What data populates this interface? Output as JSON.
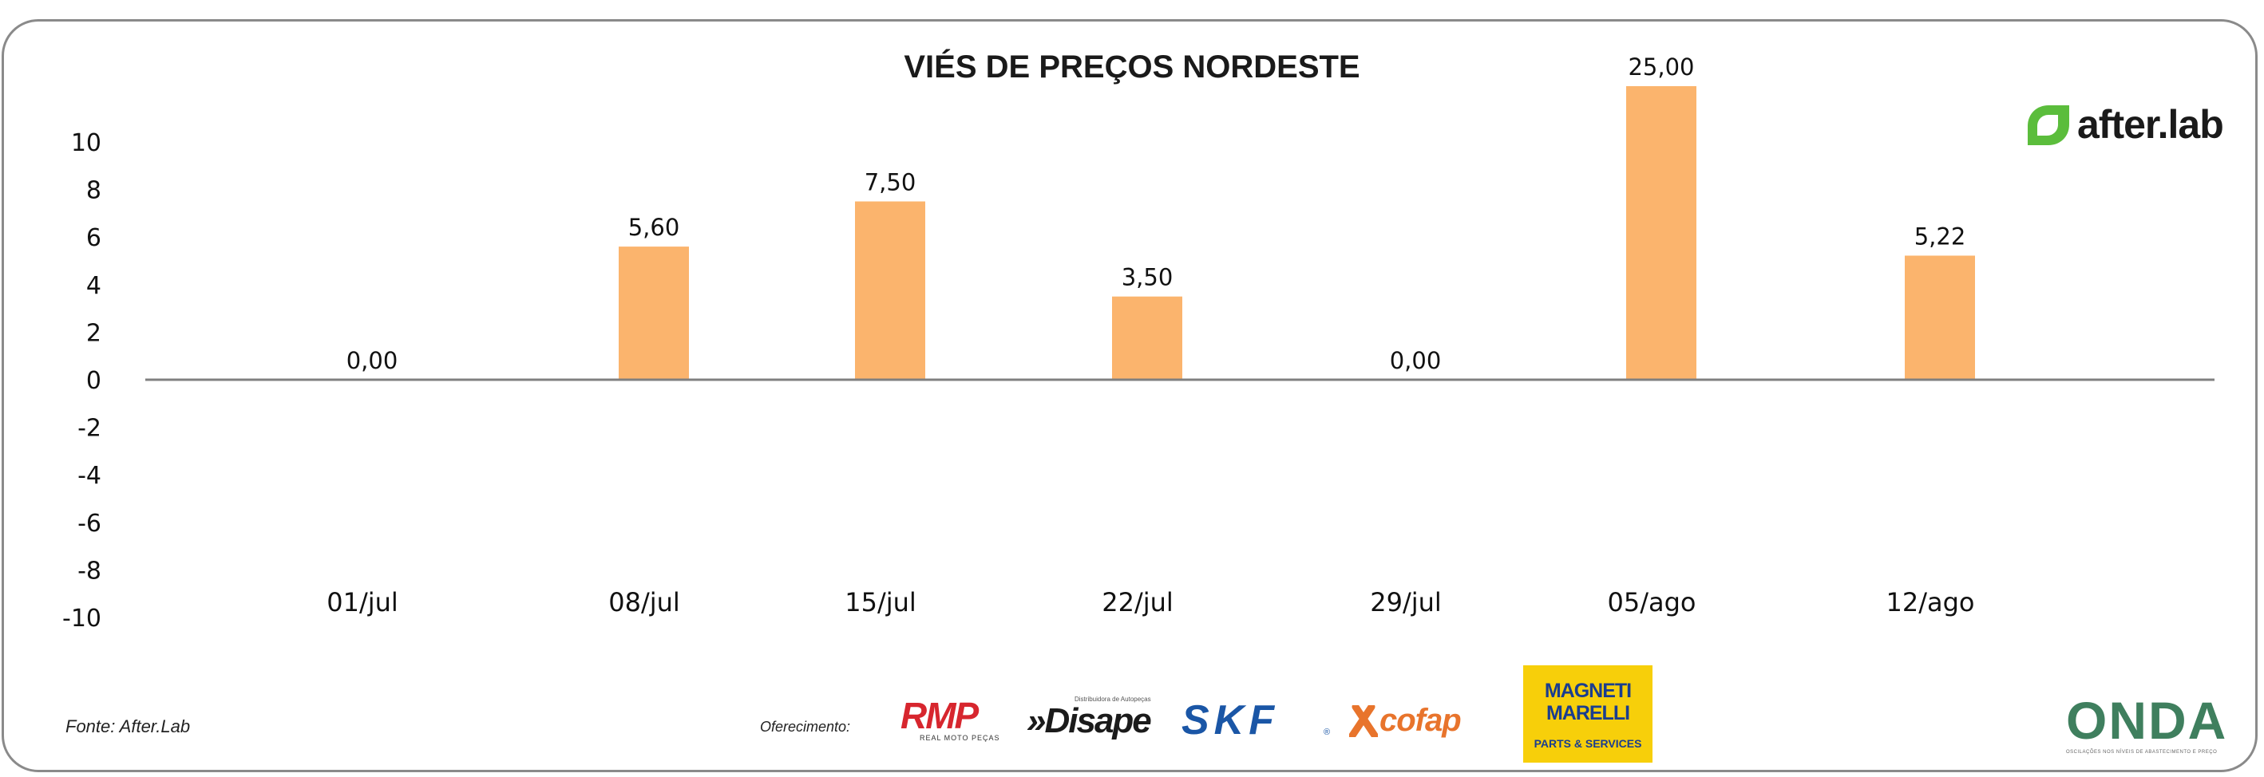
{
  "chart_data": {
    "type": "bar",
    "title": "VIÉS DE PREÇOS NORDESTE",
    "xlabel": "",
    "ylabel": "",
    "categories": [
      "01/jul",
      "08/jul",
      "15/jul",
      "22/jul",
      "29/jul",
      "05/ago",
      "12/ago"
    ],
    "values": [
      0.0,
      5.6,
      7.5,
      3.5,
      0.0,
      25.0,
      5.22
    ],
    "data_labels": [
      "0,00",
      "5,60",
      "7,50",
      "3,50",
      "0,00",
      "25,00",
      "5,22"
    ],
    "ylim": [
      -10,
      12
    ],
    "yticks": [
      10,
      8,
      6,
      4,
      2,
      0,
      -2,
      -4,
      -6,
      -8,
      -10
    ],
    "bar_color": "#fbb46d",
    "grid": false,
    "legend": "none"
  },
  "footer": {
    "source": "Fonte: After.Lab",
    "sponsor_label": "Oferecimento:"
  },
  "logos": {
    "afterlab": "after.lab",
    "rmp": "RMP",
    "rmp_sub": "REAL MOTO PEÇAS",
    "disape": "»Disape",
    "disape_tag": "Distribuidora de Autopeças",
    "skf": "SKF",
    "skf_reg": "®",
    "cofap": "cofap",
    "magneti_line1": "MAGNETI",
    "magneti_line2": "MARELLI",
    "magneti_sub": "PARTS & SERVICES",
    "onda": "ONDA",
    "onda_sub": "OSCILAÇÕES NOS NÍVEIS DE ABASTECIMENTO E PREÇO"
  },
  "colors": {
    "bar": "#fbb46d",
    "axis": "#808080",
    "afterlab_green": "#5bbd3c"
  }
}
